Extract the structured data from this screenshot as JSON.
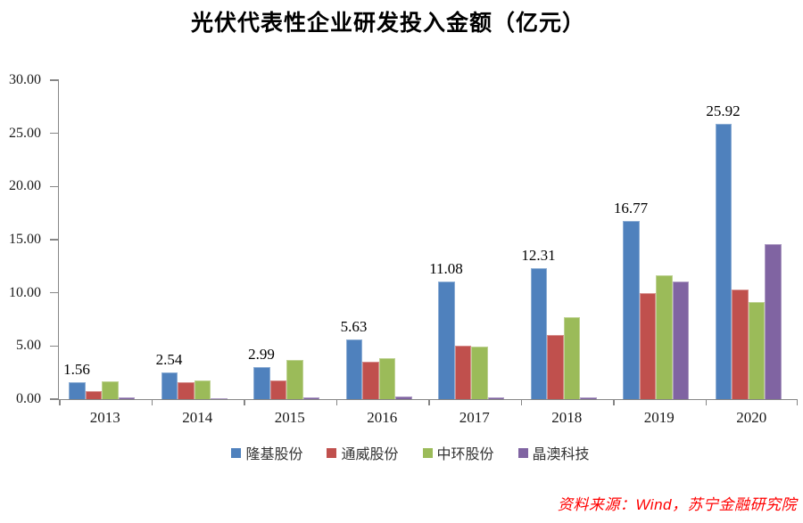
{
  "title": "光伏代表性企业研发投入金额（亿元）",
  "source": "资料来源：Wind，苏宁金融研究院",
  "chart_data": {
    "type": "bar",
    "title": "光伏代表性企业研发投入金额（亿元）",
    "xlabel": "",
    "ylabel": "",
    "ylim": [
      0,
      30
    ],
    "grid": false,
    "legend_position": "bottom",
    "y_tick_labels": [
      "30.00",
      "25.00",
      "20.00",
      "15.00",
      "10.00",
      "5.00",
      "0.00"
    ],
    "categories": [
      "2013",
      "2014",
      "2015",
      "2016",
      "2017",
      "2018",
      "2019",
      "2020"
    ],
    "series": [
      {
        "name": "隆基股份",
        "color": "#4F81BD",
        "values": [
          1.56,
          2.54,
          2.99,
          5.63,
          11.08,
          12.31,
          16.77,
          25.92
        ],
        "labels": [
          "1.56",
          "2.54",
          "2.99",
          "5.63",
          "11.08",
          "12.31",
          "16.77",
          "25.92"
        ]
      },
      {
        "name": "通威股份",
        "color": "#C0504D",
        "values": [
          0.72,
          1.58,
          1.78,
          3.55,
          5.05,
          6.0,
          9.95,
          10.35
        ]
      },
      {
        "name": "中环股份",
        "color": "#9BBB59",
        "values": [
          1.72,
          1.76,
          3.65,
          3.88,
          4.95,
          7.72,
          11.65,
          9.1
        ]
      },
      {
        "name": "晶澳科技",
        "color": "#8064A2",
        "values": [
          0.18,
          0.12,
          0.14,
          0.22,
          0.2,
          0.2,
          11.1,
          14.55
        ]
      }
    ]
  }
}
